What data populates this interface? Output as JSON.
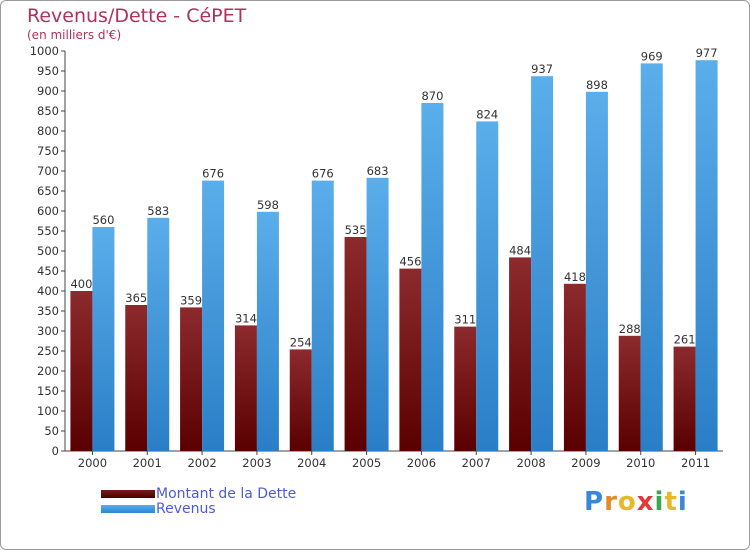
{
  "header": {
    "title": "Revenus/Dette - CéPET",
    "subtitle": "(en milliers d'€)"
  },
  "chart_data": {
    "type": "bar",
    "title": "Revenus/Dette - CéPET",
    "ylabel": "(en milliers d'€)",
    "xlabel": "",
    "ylim": [
      0,
      1000
    ],
    "ytick_step": 50,
    "grid": false,
    "categories": [
      "2000",
      "2001",
      "2002",
      "2003",
      "2004",
      "2005",
      "2006",
      "2007",
      "2008",
      "2009",
      "2010",
      "2011"
    ],
    "series": [
      {
        "name": "Montant de la Dette",
        "color": "#7a1e22",
        "values": [
          400,
          365,
          359,
          314,
          254,
          535,
          456,
          311,
          484,
          418,
          288,
          261
        ]
      },
      {
        "name": "Revenus",
        "color": "#4aa0e6",
        "values": [
          560,
          583,
          676,
          598,
          676,
          683,
          870,
          824,
          937,
          898,
          969,
          977
        ]
      }
    ],
    "legend_position": "bottom-left"
  },
  "legend": {
    "items": [
      {
        "label": "Montant de la Dette",
        "color": "#6e0d0d"
      },
      {
        "label": "Revenus",
        "color": "#3d9be5"
      }
    ]
  },
  "logo": {
    "letters": [
      "P",
      "r",
      "o",
      "x",
      "i",
      "t",
      "i"
    ],
    "colors": [
      "#3a86d8",
      "#e58a2a",
      "#e8b828",
      "#e03a3a",
      "#3aa84c",
      "#e8b828",
      "#3a86d8"
    ]
  }
}
